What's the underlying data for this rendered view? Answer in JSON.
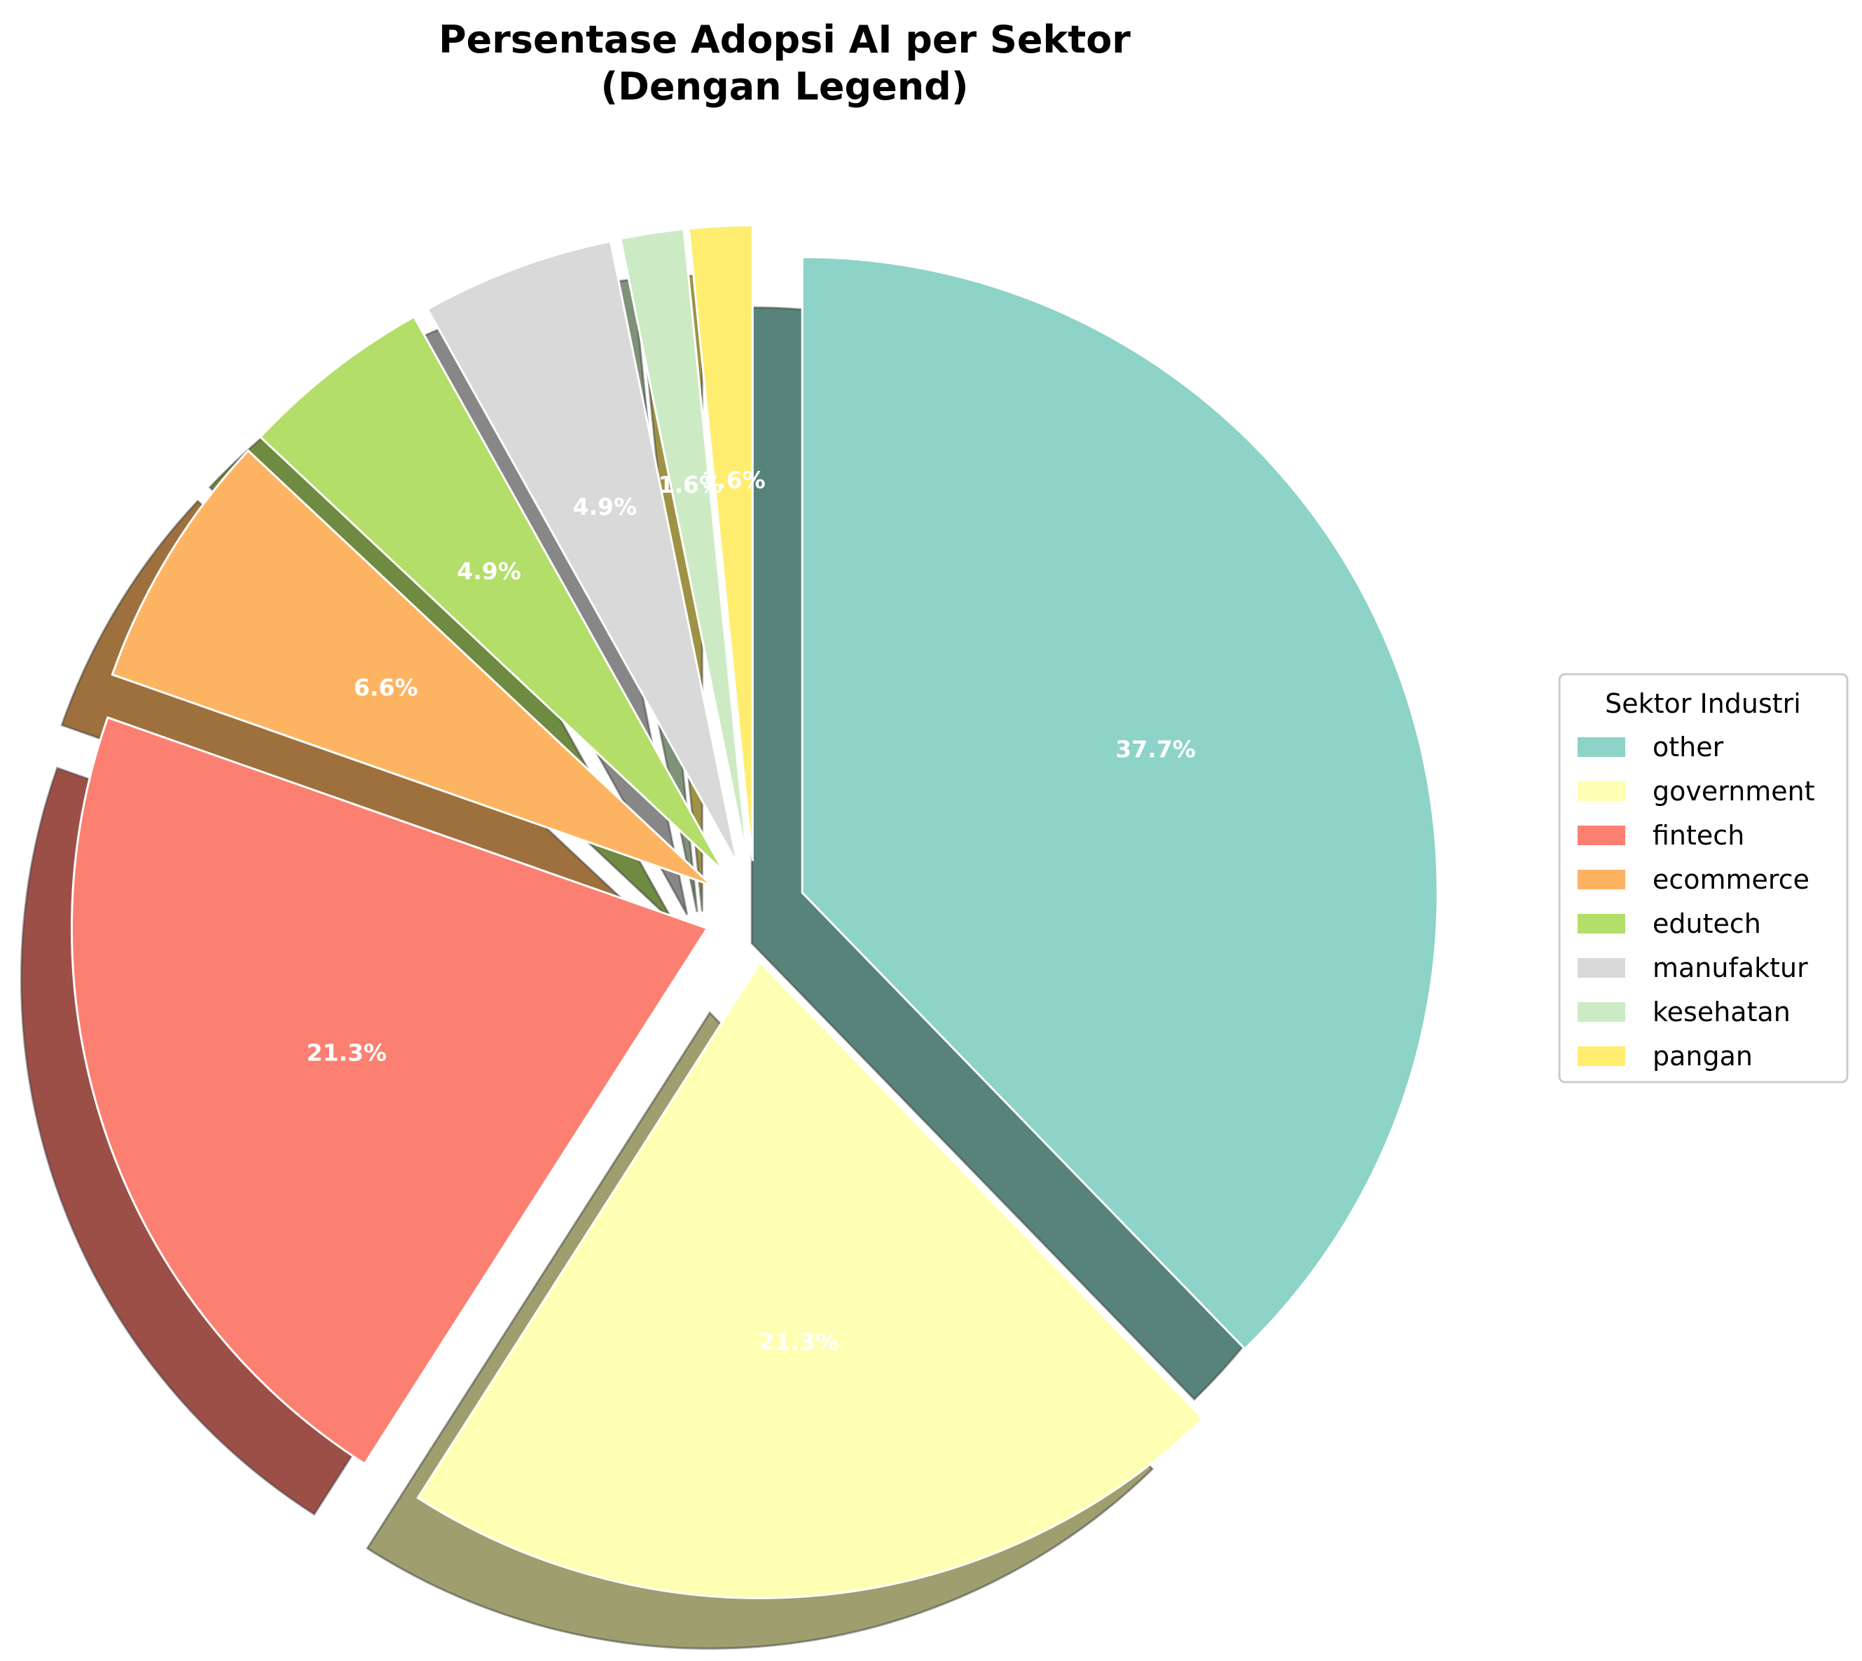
{
  "chart_data": {
    "type": "pie",
    "title": "Persentase Adopsi AI per Sektor",
    "subtitle": "(Dengan Legend)",
    "legend_title": "Sektor Industri",
    "legend_placement": "center-right",
    "start_angle_deg": 90,
    "direction": "clockwise",
    "shadow": true,
    "slices": [
      {
        "label": "other",
        "value": 37.7,
        "pct_label": "37.7%",
        "color": "#8dd3c7"
      },
      {
        "label": "government",
        "value": 21.3,
        "pct_label": "21.3%",
        "color": "#ffffb3"
      },
      {
        "label": "fintech",
        "value": 21.3,
        "pct_label": "21.3%",
        "color": "#fb8072"
      },
      {
        "label": "ecommerce",
        "value": 6.6,
        "pct_label": "6.6%",
        "color": "#fdb462"
      },
      {
        "label": "edutech",
        "value": 4.9,
        "pct_label": "4.9%",
        "color": "#b3de69"
      },
      {
        "label": "manufaktur",
        "value": 4.9,
        "pct_label": "4.9%",
        "color": "#d9d9d9"
      },
      {
        "label": "kesehatan",
        "value": 1.6,
        "pct_label": "1.6%",
        "color": "#ccebc5"
      },
      {
        "label": "pangan",
        "value": 1.6,
        "pct_label": "1.6%",
        "color": "#ffed6f"
      }
    ]
  }
}
